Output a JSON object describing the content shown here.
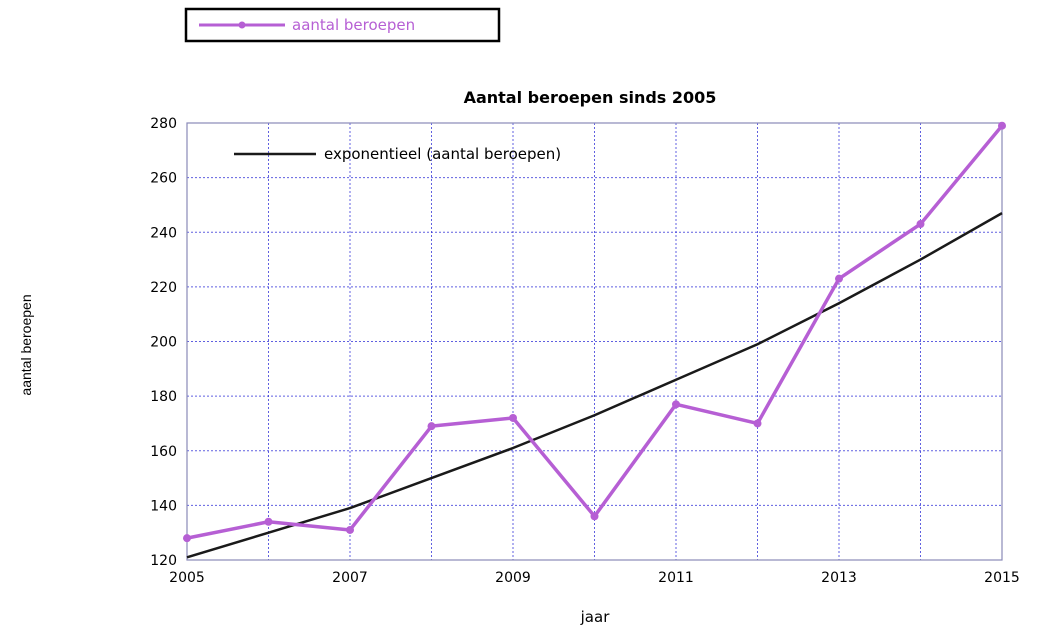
{
  "colors": {
    "series": "#b65fd4",
    "trend": "#1a1a1a",
    "grid": "#2b2bd6",
    "frame": "#8a8ab8"
  },
  "chart_data": {
    "type": "line",
    "title": "Aantal beroepen sinds 2005",
    "xlabel": "jaar",
    "ylabel": "aantal beroepen",
    "xlim": [
      2005,
      2015
    ],
    "ylim": [
      120,
      280
    ],
    "x_ticks": [
      2005,
      2007,
      2009,
      2011,
      2013,
      2015
    ],
    "y_ticks": [
      120,
      140,
      160,
      180,
      200,
      220,
      240,
      260,
      280
    ],
    "x_grid": [
      2005,
      2006,
      2007,
      2008,
      2009,
      2010,
      2011,
      2012,
      2013,
      2014,
      2015
    ],
    "grid": true,
    "series": [
      {
        "name": "aantal beroepen",
        "x": [
          2005,
          2006,
          2007,
          2008,
          2009,
          2010,
          2011,
          2012,
          2013,
          2014,
          2015
        ],
        "values": [
          128,
          134,
          131,
          169,
          172,
          136,
          177,
          170,
          223,
          243,
          279
        ]
      },
      {
        "name": "exponentieel (aantal beroepen)",
        "x": [
          2005,
          2006,
          2007,
          2008,
          2009,
          2010,
          2011,
          2012,
          2013,
          2014,
          2015
        ],
        "values": [
          121,
          130,
          139,
          150,
          161,
          173,
          186,
          199,
          214,
          230,
          247
        ]
      }
    ],
    "legend_outer": "top-left, above chart",
    "legend_inner": "top-left, inside plot"
  }
}
